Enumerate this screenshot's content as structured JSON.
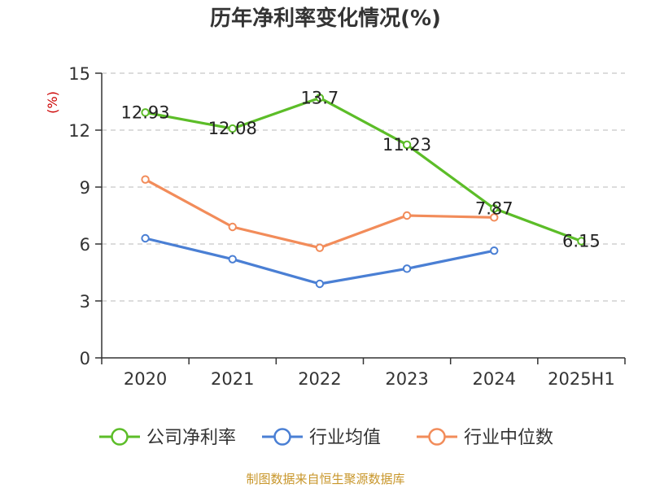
{
  "title": "历年净利率变化情况(%)",
  "source": "制图数据来自恒生聚源数据库",
  "chart_data": {
    "type": "line",
    "title": "历年净利率变化情况(%)",
    "ylabel": "(%)",
    "unit_color": "#cc0000",
    "categories": [
      "2020",
      "2021",
      "2022",
      "2023",
      "2024",
      "2025H1"
    ],
    "ylim": [
      0,
      15
    ],
    "yticks": [
      0,
      3,
      6,
      9,
      12,
      15
    ],
    "grid": true,
    "legend_position": "bottom",
    "series": [
      {
        "name": "公司净利率",
        "color": "#5cbd28",
        "values": [
          12.93,
          12.08,
          13.7,
          11.23,
          7.87,
          6.15
        ],
        "show_labels": true
      },
      {
        "name": "行业均值",
        "color": "#4a7fd4",
        "values": [
          6.3,
          5.2,
          3.9,
          4.7,
          5.65,
          null
        ],
        "show_labels": false
      },
      {
        "name": "行业中位数",
        "color": "#f28c5a",
        "values": [
          9.4,
          6.9,
          5.8,
          7.5,
          7.4,
          null
        ],
        "show_labels": false
      }
    ]
  }
}
